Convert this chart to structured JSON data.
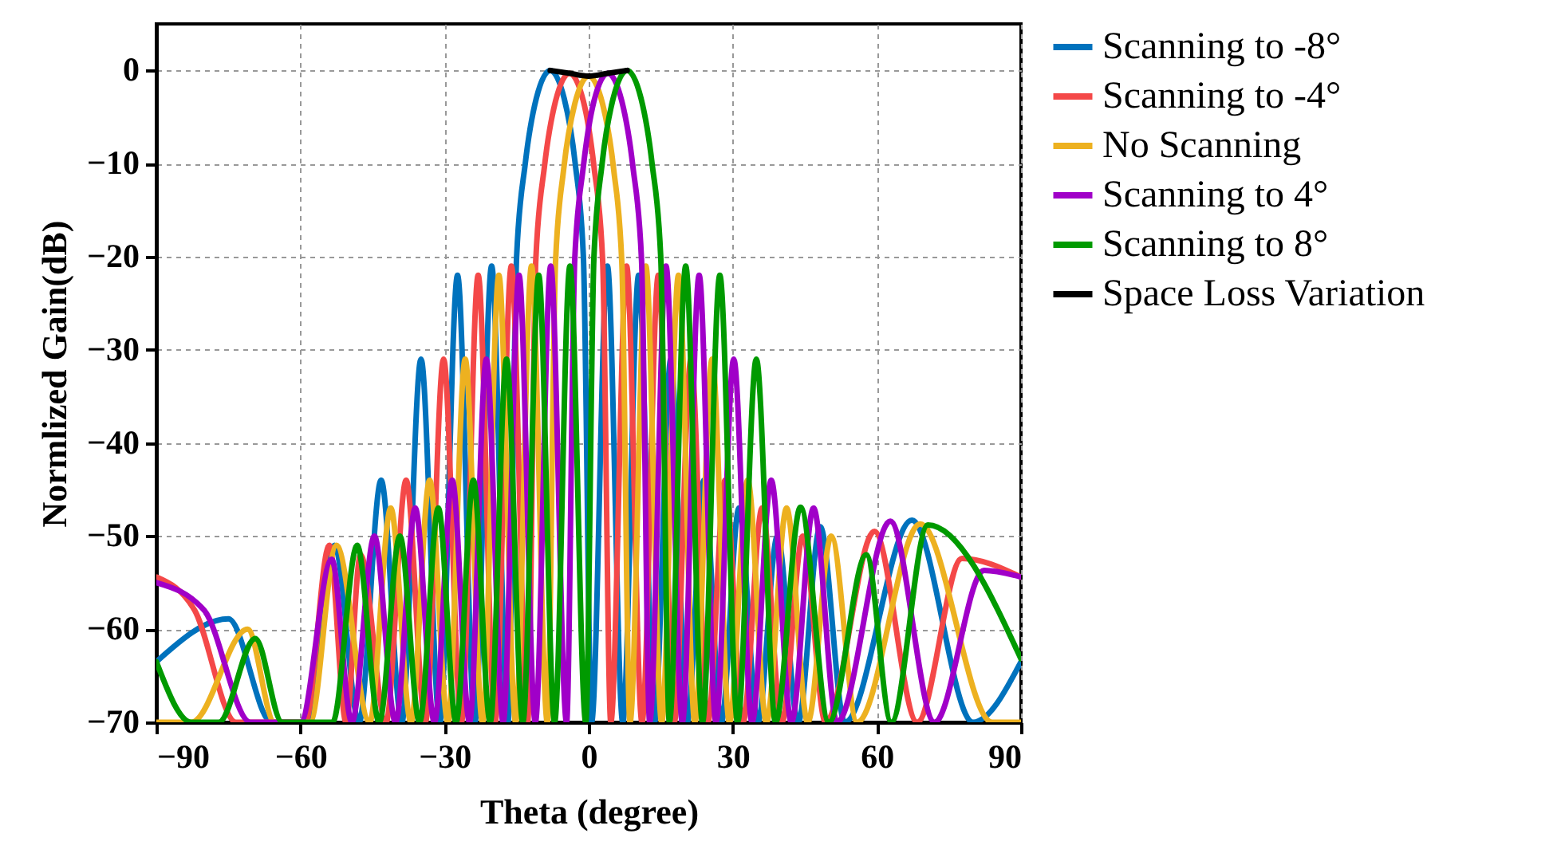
{
  "chart_data": {
    "type": "line",
    "xlabel": "Theta (degree)",
    "ylabel": "Normlized Gain(dB)",
    "xlim": [
      -90,
      90
    ],
    "ylim": [
      -70,
      5
    ],
    "xticks": [
      -90,
      -60,
      -30,
      0,
      30,
      60,
      90
    ],
    "yticks": [
      -70,
      -60,
      -50,
      -40,
      -30,
      -20,
      -10,
      0
    ],
    "grid": true,
    "legend": "right",
    "marker": "none",
    "line_style": "solid",
    "series": [
      {
        "name": "Scanning to -8°",
        "color": "#0072bd",
        "x": [
          -90,
          -75,
          -66,
          -58.7,
          -52.9,
          -47.8,
          -43.2,
          -38.9,
          -34.9,
          -31.0,
          -27.3,
          -23.7,
          -20.2,
          -16.8,
          -15.0,
          -13.2,
          -10.9,
          -8.0,
          -5.1,
          -2.8,
          -1.1,
          0.6,
          3.9,
          7.1,
          10.4,
          13.7,
          17.1,
          20.5,
          24.0,
          27.6,
          31.3,
          35.2,
          39.3,
          43.6,
          48.2,
          53.3,
          67.3,
          80,
          90
        ],
        "values": [
          -63.5,
          -58.9,
          -70,
          -70,
          -51,
          -70,
          -44,
          -70,
          -31,
          -70,
          -22,
          -70,
          -21,
          -70,
          -20,
          -10,
          -3,
          0,
          -3,
          -10,
          -20,
          -70,
          -21,
          -70,
          -22,
          -70,
          -31,
          -70,
          -44,
          -70,
          -47,
          -70,
          -50,
          -70,
          -49,
          -70,
          -48.3,
          -70,
          -63.5
        ]
      },
      {
        "name": "Scanning to -4°",
        "color": "#f44848",
        "x": [
          -90,
          -82,
          -73.4,
          -59,
          -54,
          -50.5,
          -47.5,
          -42.2,
          -38.0,
          -34.0,
          -30.2,
          -26.5,
          -23.0,
          -19.5,
          -16.1,
          -12.7,
          -11.0,
          -9.2,
          -6.9,
          -4.0,
          -1.1,
          1.1,
          2.9,
          4.6,
          7.9,
          11.1,
          14.5,
          17.8,
          21.3,
          24.8,
          28.4,
          32.1,
          36.1,
          40.2,
          44.6,
          49.3,
          59.5,
          68.4,
          77.7,
          90
        ],
        "values": [
          -54.4,
          -58,
          -70,
          -70,
          -51,
          -70,
          -52,
          -70,
          -44,
          -70,
          -31,
          -70,
          -22,
          -70,
          -21,
          -70,
          -20.3,
          -10.3,
          -3.3,
          -0.3,
          -3.3,
          -10.3,
          -20.3,
          -70,
          -21,
          -70,
          -22,
          -70,
          -31,
          -70,
          -44,
          -70,
          -47,
          -70,
          -50,
          -70,
          -49.5,
          -70,
          -52.4,
          -54.4
        ]
      },
      {
        "name": "No Scanning",
        "color": "#edb120",
        "x": [
          -90,
          -82.7,
          -71,
          -65.4,
          -58,
          -52.5,
          -45.6,
          -41.2,
          -37.0,
          -33.1,
          -29.3,
          -25.7,
          -22.1,
          -18.7,
          -15.2,
          -11.9,
          -8.6,
          -6.9,
          -5.2,
          -2.9,
          0,
          2.9,
          5.2,
          6.9,
          8.6,
          11.9,
          15.2,
          18.7,
          22.1,
          25.7,
          29.3,
          33.1,
          37.0,
          41.2,
          45.6,
          50.5,
          55.9,
          69,
          84,
          90
        ],
        "values": [
          -70,
          -70,
          -60,
          -70,
          -70,
          -51,
          -70,
          -47,
          -70,
          -44,
          -70,
          -31,
          -70,
          -22,
          -70,
          -21,
          -70,
          -20.6,
          -10.6,
          -3.6,
          -0.6,
          -3.6,
          -10.6,
          -20.6,
          -70,
          -21,
          -70,
          -22,
          -70,
          -31,
          -70,
          -44,
          -70,
          -47,
          -70,
          -50,
          -70,
          -48.7,
          -70,
          -70
        ]
      },
      {
        "name": "Scanning to 4°",
        "color": "#a000c8",
        "x": [
          -90,
          -80,
          -70.4,
          -60,
          -53.5,
          -49.3,
          -44.6,
          -40.2,
          -36.1,
          -32.1,
          -28.4,
          -24.8,
          -21.3,
          -17.8,
          -14.5,
          -11.1,
          -7.9,
          -4.6,
          -2.9,
          -1.1,
          1.1,
          4.0,
          6.9,
          9.2,
          11.0,
          12.7,
          16.1,
          19.5,
          23.0,
          26.5,
          30.2,
          34.0,
          38.0,
          42.2,
          46.8,
          51.7,
          62.8,
          72,
          82.3,
          90
        ],
        "values": [
          -55,
          -58,
          -70,
          -70,
          -52.5,
          -70,
          -50,
          -70,
          -47,
          -70,
          -44,
          -70,
          -31,
          -70,
          -22,
          -70,
          -21,
          -70,
          -20.3,
          -10.3,
          -3.3,
          -0.3,
          -3.3,
          -10.3,
          -20.3,
          -70,
          -21,
          -70,
          -22,
          -70,
          -31,
          -70,
          -44,
          -70,
          -47,
          -70,
          -48.4,
          -70,
          -53.7,
          -54.4
        ]
      },
      {
        "name": "Scanning to 8°",
        "color": "#009a00",
        "x": [
          -90,
          -82.7,
          -77,
          -69.4,
          -63.8,
          -53.3,
          -48.2,
          -43.6,
          -39.3,
          -35.2,
          -31.3,
          -27.6,
          -24.0,
          -20.5,
          -17.1,
          -13.7,
          -10.4,
          -7.1,
          -3.9,
          -0.6,
          1.1,
          2.8,
          5.1,
          8.0,
          10.9,
          13.2,
          15.0,
          16.8,
          20.2,
          23.7,
          27.3,
          31.0,
          34.9,
          38.9,
          44.1,
          50,
          57.8,
          63,
          70.6,
          90
        ],
        "values": [
          -63.5,
          -70,
          -70,
          -61,
          -70,
          -70,
          -51,
          -70,
          -50,
          -70,
          -47,
          -70,
          -44,
          -70,
          -31,
          -70,
          -22,
          -70,
          -21,
          -70,
          -20,
          -10,
          -3,
          0,
          -3,
          -10,
          -20,
          -70,
          -21,
          -70,
          -22,
          -70,
          -31,
          -70,
          -46.9,
          -70,
          -52,
          -70,
          -48.8,
          -63.2
        ]
      },
      {
        "name": "Space Loss Variation",
        "color": "#000000",
        "x": [
          -8,
          -4,
          0,
          4,
          8
        ],
        "values": [
          0,
          -0.3,
          -0.6,
          -0.3,
          0
        ]
      }
    ]
  }
}
